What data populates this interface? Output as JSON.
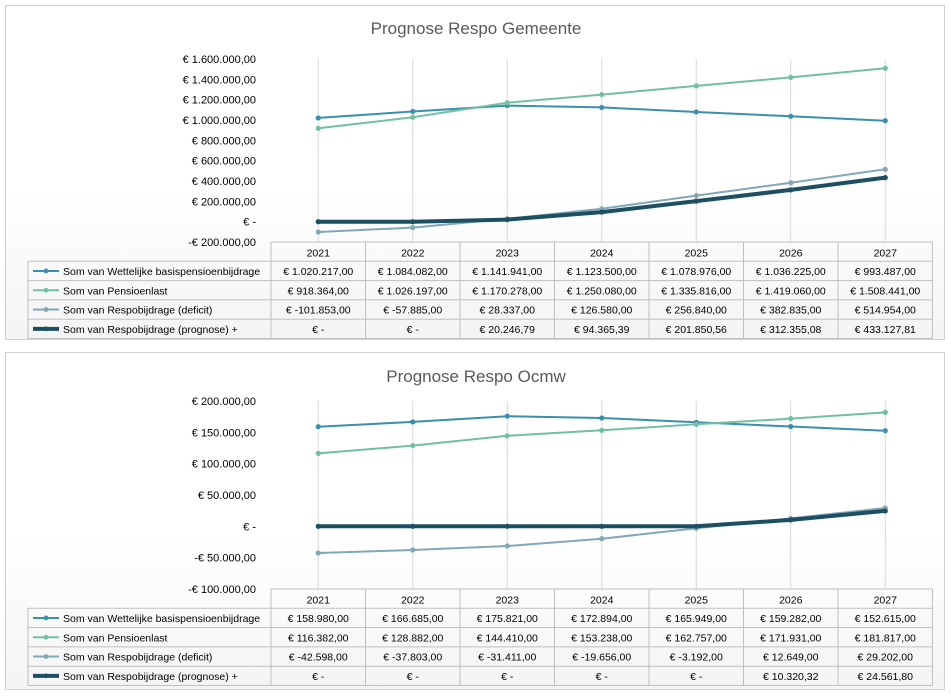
{
  "chart_data": [
    {
      "type": "line",
      "title": "Prognose Respo Gemeente",
      "categories": [
        "2021",
        "2022",
        "2023",
        "2024",
        "2025",
        "2026",
        "2027"
      ],
      "ylim": [
        -200000,
        1600000
      ],
      "y_ticks": [
        "€ 1.600.000,00",
        "€ 1.400.000,00",
        "€ 1.200.000,00",
        "€ 1.000.000,00",
        "€ 800.000,00",
        "€ 600.000,00",
        "€ 400.000,00",
        "€ 200.000,00",
        "€ -",
        "-€ 200.000,00"
      ],
      "legend_placement": "data-table",
      "series": [
        {
          "name": "Som van Wettelijke basispensioenbijdrage",
          "color": "#3a8fae",
          "values": [
            1020217,
            1084082,
            1141941,
            1123500,
            1078976,
            1036225,
            993487
          ],
          "labels": [
            "€ 1.020.217,00",
            "€ 1.084.082,00",
            "€ 1.141.941,00",
            "€ 1.123.500,00",
            "€ 1.078.976,00",
            "€ 1.036.225,00",
            "€ 993.487,00"
          ]
        },
        {
          "name": "Som van Pensioenlast",
          "color": "#72c0a2",
          "values": [
            918364,
            1026197,
            1170278,
            1250080,
            1335816,
            1419060,
            1508441
          ],
          "labels": [
            "€ 918.364,00",
            "€ 1.026.197,00",
            "€ 1.170.278,00",
            "€ 1.250.080,00",
            "€ 1.335.816,00",
            "€ 1.419.060,00",
            "€ 1.508.441,00"
          ]
        },
        {
          "name": "Som van Respobijdrage (deficit)",
          "color": "#82a7b6",
          "values": [
            -101853,
            -57885,
            28337,
            126580,
            256840,
            382835,
            514954
          ],
          "labels": [
            "€ -101.853,00",
            "€ -57.885,00",
            "€ 28.337,00",
            "€ 126.580,00",
            "€ 256.840,00",
            "€ 382.835,00",
            "€ 514.954,00"
          ]
        },
        {
          "name": "Som van Respobijdrage (prognose) +",
          "color": "#1d4f63",
          "width": 4,
          "values": [
            0,
            0,
            20246.79,
            94365.39,
            201850.56,
            312355.08,
            433127.81
          ],
          "labels": [
            "€ -",
            "€ -",
            "€ 20.246,79",
            "€ 94.365,39",
            "€ 201.850,56",
            "€ 312.355,08",
            "€ 433.127,81"
          ]
        }
      ]
    },
    {
      "type": "line",
      "title": "Prognose Respo Ocmw",
      "categories": [
        "2021",
        "2022",
        "2023",
        "2024",
        "2025",
        "2026",
        "2027"
      ],
      "ylim": [
        -100000,
        200000
      ],
      "y_ticks": [
        "€ 200.000,00",
        "€ 150.000,00",
        "€ 100.000,00",
        "€ 50.000,00",
        "€ -",
        "-€ 50.000,00",
        "-€ 100.000,00"
      ],
      "legend_placement": "data-table",
      "series": [
        {
          "name": "Som van Wettelijke basispensioenbijdrage",
          "color": "#3a8fae",
          "values": [
            158980,
            166685,
            175821,
            172894,
            165949,
            159282,
            152615
          ],
          "labels": [
            "€ 158.980,00",
            "€ 166.685,00",
            "€ 175.821,00",
            "€ 172.894,00",
            "€ 165.949,00",
            "€ 159.282,00",
            "€ 152.615,00"
          ]
        },
        {
          "name": "Som van Pensioenlast",
          "color": "#72c0a2",
          "values": [
            116382,
            128882,
            144410,
            153238,
            162757,
            171931,
            181817
          ],
          "labels": [
            "€ 116.382,00",
            "€ 128.882,00",
            "€ 144.410,00",
            "€ 153.238,00",
            "€ 162.757,00",
            "€ 171.931,00",
            "€ 181.817,00"
          ]
        },
        {
          "name": "Som van Respobijdrage (deficit)",
          "color": "#82a7b6",
          "values": [
            -42598,
            -37803,
            -31411,
            -19656,
            -3192,
            12649,
            29202
          ],
          "labels": [
            "€ -42.598,00",
            "€ -37.803,00",
            "€ -31.411,00",
            "€ -19.656,00",
            "€ -3.192,00",
            "€ 12.649,00",
            "€ 29.202,00"
          ]
        },
        {
          "name": "Som van Respobijdrage (prognose) +",
          "color": "#1d4f63",
          "width": 4,
          "values": [
            0,
            0,
            0,
            0,
            0,
            10320.32,
            24561.8
          ],
          "labels": [
            "€ -",
            "€ -",
            "€ -",
            "€ -",
            "€ -",
            "€ 10.320,32",
            "€ 24.561,80"
          ]
        }
      ]
    }
  ]
}
